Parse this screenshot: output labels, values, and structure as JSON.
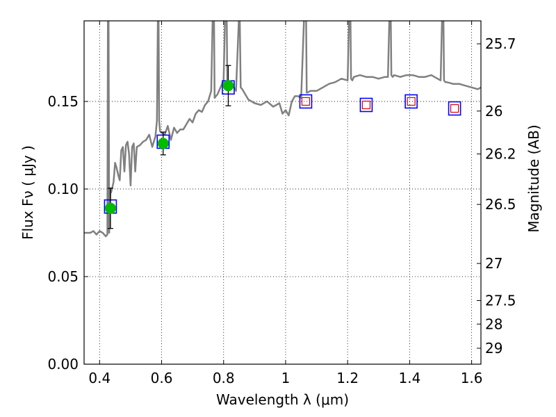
{
  "chart_data": {
    "type": "scatter",
    "xlabel": "Wavelength  λ (μm)",
    "ylabel": "Flux  Fν  ( μJy )",
    "y2label": "Magnitude (AB)",
    "xlim": [
      0.35,
      1.63
    ],
    "ylim": [
      0.0,
      0.196
    ],
    "grid": true,
    "x_ticks": [
      {
        "value": 0.4,
        "label": "0.4"
      },
      {
        "value": 0.6,
        "label": "0.6"
      },
      {
        "value": 0.8,
        "label": "0.8"
      },
      {
        "value": 1.0,
        "label": "1"
      },
      {
        "value": 1.2,
        "label": "1.2"
      },
      {
        "value": 1.4,
        "label": "1.4"
      },
      {
        "value": 1.6,
        "label": "1.6"
      }
    ],
    "y_ticks": [
      {
        "value": 0.0,
        "label": "0.00"
      },
      {
        "value": 0.05,
        "label": "0.05"
      },
      {
        "value": 0.1,
        "label": "0.10"
      },
      {
        "value": 0.15,
        "label": "0.15"
      }
    ],
    "y2_ticks": [
      {
        "flux": 0.1829,
        "label": "25.7"
      },
      {
        "flux": 0.1445,
        "label": "26"
      },
      {
        "flux": 0.12,
        "label": "26.2"
      },
      {
        "flux": 0.0912,
        "label": "26.5"
      },
      {
        "flux": 0.0575,
        "label": "27"
      },
      {
        "flux": 0.0363,
        "label": "27.5"
      },
      {
        "flux": 0.0229,
        "label": "28"
      },
      {
        "flux": 0.0091,
        "label": "29"
      }
    ],
    "series": [
      {
        "kind": "model-spectrum",
        "color": "#808080",
        "x": [
          0.35,
          0.37,
          0.38,
          0.39,
          0.4,
          0.41,
          0.42,
          0.425,
          0.427,
          0.429,
          0.431,
          0.433,
          0.435,
          0.437,
          0.44,
          0.445,
          0.45,
          0.455,
          0.46,
          0.465,
          0.47,
          0.475,
          0.48,
          0.485,
          0.49,
          0.495,
          0.5,
          0.505,
          0.51,
          0.515,
          0.52,
          0.53,
          0.54,
          0.55,
          0.56,
          0.57,
          0.58,
          0.585,
          0.588,
          0.59,
          0.592,
          0.595,
          0.6,
          0.61,
          0.62,
          0.63,
          0.64,
          0.65,
          0.66,
          0.67,
          0.68,
          0.69,
          0.7,
          0.71,
          0.72,
          0.73,
          0.74,
          0.75,
          0.76,
          0.765,
          0.767,
          0.769,
          0.771,
          0.775,
          0.78,
          0.79,
          0.8,
          0.805,
          0.808,
          0.81,
          0.812,
          0.815,
          0.82,
          0.83,
          0.84,
          0.85,
          0.852,
          0.855,
          0.86,
          0.87,
          0.88,
          0.89,
          0.9,
          0.92,
          0.94,
          0.96,
          0.98,
          0.99,
          1.0,
          1.01,
          1.02,
          1.03,
          1.04,
          1.05,
          1.06,
          1.062,
          1.064,
          1.066,
          1.068,
          1.07,
          1.08,
          1.1,
          1.12,
          1.14,
          1.16,
          1.18,
          1.2,
          1.205,
          1.207,
          1.209,
          1.211,
          1.215,
          1.22,
          1.24,
          1.26,
          1.28,
          1.3,
          1.32,
          1.33,
          1.335,
          1.337,
          1.339,
          1.341,
          1.345,
          1.35,
          1.37,
          1.39,
          1.41,
          1.43,
          1.45,
          1.47,
          1.49,
          1.5,
          1.505,
          1.507,
          1.509,
          1.511,
          1.515,
          1.52,
          1.54,
          1.56,
          1.58,
          1.6,
          1.62,
          1.63
        ],
        "y": [
          0.075,
          0.075,
          0.076,
          0.074,
          0.076,
          0.075,
          0.073,
          0.074,
          0.2,
          0.2,
          0.075,
          0.085,
          0.1,
          0.098,
          0.1,
          0.104,
          0.115,
          0.112,
          0.108,
          0.105,
          0.122,
          0.124,
          0.11,
          0.125,
          0.127,
          0.12,
          0.102,
          0.124,
          0.126,
          0.11,
          0.124,
          0.125,
          0.127,
          0.128,
          0.131,
          0.124,
          0.13,
          0.139,
          0.2,
          0.2,
          0.139,
          0.133,
          0.132,
          0.131,
          0.136,
          0.128,
          0.135,
          0.132,
          0.134,
          0.134,
          0.137,
          0.14,
          0.138,
          0.143,
          0.145,
          0.144,
          0.148,
          0.15,
          0.156,
          0.2,
          0.2,
          0.2,
          0.152,
          0.153,
          0.154,
          0.158,
          0.162,
          0.2,
          0.2,
          0.2,
          0.158,
          0.157,
          0.158,
          0.159,
          0.156,
          0.2,
          0.2,
          0.158,
          0.157,
          0.154,
          0.151,
          0.15,
          0.149,
          0.148,
          0.15,
          0.147,
          0.149,
          0.143,
          0.145,
          0.142,
          0.15,
          0.153,
          0.153,
          0.152,
          0.2,
          0.2,
          0.2,
          0.2,
          0.155,
          0.155,
          0.156,
          0.156,
          0.158,
          0.16,
          0.161,
          0.163,
          0.162,
          0.2,
          0.2,
          0.2,
          0.163,
          0.162,
          0.164,
          0.165,
          0.164,
          0.164,
          0.163,
          0.164,
          0.164,
          0.2,
          0.2,
          0.2,
          0.165,
          0.164,
          0.165,
          0.164,
          0.165,
          0.165,
          0.164,
          0.164,
          0.165,
          0.163,
          0.162,
          0.2,
          0.2,
          0.2,
          0.162,
          0.161,
          0.161,
          0.16,
          0.16,
          0.159,
          0.158,
          0.157,
          0.158
        ]
      },
      {
        "kind": "observed-photometry",
        "color": "#00bb00",
        "marker": "circle",
        "x": [
          0.435,
          0.605,
          0.815
        ],
        "y": [
          0.089,
          0.126,
          0.159
        ],
        "yerr": [
          0.0115,
          0.0065,
          0.0115
        ]
      },
      {
        "kind": "model-synthetic-photometry",
        "color": "#0000ff",
        "marker": "square",
        "x": [
          0.435,
          0.605,
          0.815,
          1.065,
          1.26,
          1.405,
          1.545
        ],
        "y": [
          0.09,
          0.127,
          0.158,
          0.15,
          0.148,
          0.15,
          0.146
        ]
      },
      {
        "kind": "upper-band-markers",
        "color": "#dd0000",
        "marker": "square-small",
        "x": [
          1.065,
          1.26,
          1.405,
          1.545
        ],
        "y": [
          0.15,
          0.148,
          0.15,
          0.146
        ]
      }
    ]
  }
}
